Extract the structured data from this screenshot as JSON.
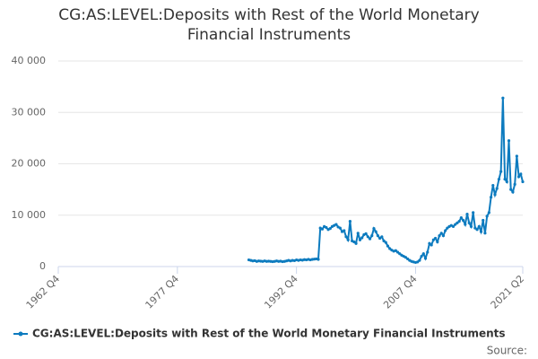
{
  "chart_data": {
    "type": "line",
    "title": "CG:AS:LEVEL:Deposits with Rest of the World Monetary Financial Instruments",
    "source": "Source:",
    "categories": [
      "1962 Q4",
      null,
      null,
      null,
      null,
      null,
      null,
      null,
      null,
      null,
      null,
      null,
      null,
      null,
      null,
      null,
      null,
      null,
      null,
      null,
      null,
      null,
      null,
      null,
      null,
      null,
      null,
      null,
      null,
      null,
      null,
      null,
      null,
      null,
      null,
      null,
      null,
      null,
      null,
      null,
      null,
      null,
      null,
      null,
      null,
      null,
      null,
      null,
      null,
      null,
      null,
      null,
      null,
      null,
      null,
      null,
      null,
      null,
      null,
      null,
      "1977 Q4",
      null,
      null,
      null,
      null,
      null,
      null,
      null,
      null,
      null,
      null,
      null,
      null,
      null,
      null,
      null,
      null,
      null,
      null,
      null,
      null,
      null,
      null,
      null,
      null,
      null,
      null,
      null,
      null,
      null,
      null,
      null,
      null,
      null,
      null,
      null,
      null,
      null,
      null,
      null,
      null,
      null,
      null,
      null,
      null,
      null,
      null,
      null,
      null,
      null,
      null,
      null,
      null,
      null,
      null,
      null,
      null,
      null,
      null,
      null,
      "1992 Q4",
      null,
      null,
      null,
      null,
      null,
      null,
      null,
      null,
      null,
      null,
      null,
      null,
      null,
      null,
      null,
      null,
      null,
      null,
      null,
      null,
      null,
      null,
      null,
      null,
      null,
      null,
      null,
      null,
      null,
      null,
      null,
      null,
      null,
      null,
      null,
      null,
      null,
      null,
      null,
      null,
      null,
      null,
      null,
      null,
      null,
      null,
      null,
      null,
      null,
      null,
      null,
      null,
      null,
      null,
      null,
      null,
      null,
      null,
      null,
      "2007 Q4",
      null,
      null,
      null,
      null,
      null,
      null,
      null,
      null,
      null,
      null,
      null,
      null,
      null,
      null,
      null,
      null,
      null,
      null,
      null,
      null,
      null,
      null,
      null,
      null,
      null,
      null,
      null,
      null,
      null,
      null,
      null,
      null,
      null,
      null,
      null,
      null,
      null,
      null,
      null,
      null,
      null,
      null,
      null,
      null,
      null,
      null,
      null,
      null,
      null,
      null,
      null,
      null,
      null,
      "2021 Q2"
    ],
    "series": [
      {
        "name": "CG:AS:LEVEL:Deposits with Rest of the World Monetary Financial Instruments",
        "color": "#0d7bbf",
        "values": [
          null,
          null,
          null,
          null,
          null,
          null,
          null,
          null,
          null,
          null,
          null,
          null,
          null,
          null,
          null,
          null,
          null,
          null,
          null,
          null,
          null,
          null,
          null,
          null,
          null,
          null,
          null,
          null,
          null,
          null,
          null,
          null,
          null,
          null,
          null,
          null,
          null,
          null,
          null,
          null,
          null,
          null,
          null,
          null,
          null,
          null,
          null,
          null,
          null,
          null,
          null,
          null,
          null,
          null,
          null,
          null,
          null,
          null,
          null,
          null,
          null,
          null,
          null,
          null,
          null,
          null,
          null,
          null,
          null,
          null,
          null,
          null,
          null,
          null,
          null,
          null,
          null,
          null,
          null,
          null,
          null,
          null,
          null,
          null,
          null,
          null,
          null,
          null,
          null,
          null,
          null,
          null,
          null,
          null,
          null,
          null,
          1300,
          1200,
          1100,
          1150,
          1000,
          1100,
          1050,
          1000,
          1100,
          1000,
          1050,
          1000,
          950,
          1000,
          1100,
          1000,
          1050,
          950,
          1000,
          1100,
          1200,
          1100,
          1200,
          1150,
          1300,
          1200,
          1300,
          1250,
          1350,
          1300,
          1400,
          1300,
          1400,
          1450,
          1500,
          1400,
          7500,
          7300,
          7800,
          7600,
          7200,
          7400,
          7800,
          8000,
          8200,
          7700,
          7500,
          6800,
          7000,
          5800,
          5200,
          8800,
          5000,
          4800,
          4500,
          6500,
          5200,
          5600,
          6200,
          6400,
          5800,
          5400,
          6000,
          7400,
          6800,
          6000,
          5500,
          5800,
          5000,
          4700,
          4000,
          3500,
          3200,
          3000,
          3100,
          2800,
          2500,
          2200,
          2000,
          1800,
          1500,
          1200,
          1000,
          900,
          800,
          900,
          1200,
          2000,
          2500,
          1600,
          2800,
          4500,
          4200,
          5200,
          5500,
          4800,
          6000,
          6500,
          6000,
          7000,
          7500,
          7800,
          8000,
          7800,
          8200,
          8500,
          8800,
          9500,
          9000,
          8200,
          10200,
          8500,
          7800,
          10500,
          7500,
          7200,
          7800,
          6800,
          9000,
          6500,
          9800,
          10500,
          13500,
          15800,
          14000,
          15200,
          17000,
          18500,
          32800,
          17000,
          16500,
          24500,
          15000,
          14500,
          16000,
          21500,
          17500,
          18000,
          16500
        ]
      }
    ],
    "ylim": [
      0,
      40000
    ],
    "yticks": [
      0,
      {
        "value": 10000,
        "label": "10 000"
      },
      {
        "value": 20000,
        "label": "20 000"
      },
      {
        "value": 30000,
        "label": "30 000"
      },
      {
        "value": 40000,
        "label": "40 000"
      }
    ],
    "grid": true
  }
}
